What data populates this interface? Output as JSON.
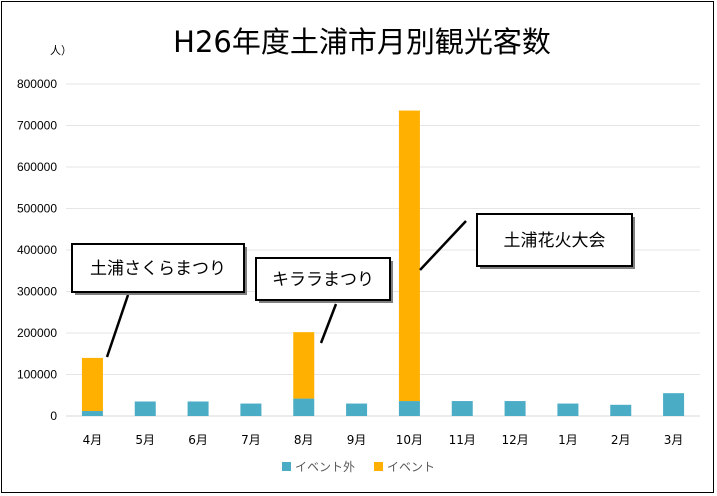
{
  "chart_data": {
    "type": "bar",
    "stacked": true,
    "title": "H26年度土浦市月別観光客数",
    "ylabel": "人）",
    "ylim": [
      0,
      800000
    ],
    "yticks": [
      0,
      100000,
      200000,
      300000,
      400000,
      500000,
      600000,
      700000,
      800000
    ],
    "grid": true,
    "legend_position": "bottom",
    "categories": [
      "4月",
      "5月",
      "6月",
      "7月",
      "8月",
      "9月",
      "10月",
      "11月",
      "12月",
      "1月",
      "2月",
      "3月"
    ],
    "series": [
      {
        "name": "イベント外",
        "color": "#4BACC6",
        "values": [
          12000,
          35000,
          35000,
          30000,
          42000,
          30000,
          36000,
          36000,
          36000,
          30000,
          27000,
          55000
        ]
      },
      {
        "name": "イベント",
        "color": "#FFB000",
        "values": [
          128000,
          0,
          0,
          0,
          160000,
          0,
          700000,
          0,
          0,
          0,
          0,
          0
        ]
      }
    ],
    "annotations": [
      {
        "text": "土浦さくらまつり",
        "category": "4月"
      },
      {
        "text": "キララまつり",
        "category": "8月"
      },
      {
        "text": "土浦花火大会",
        "category": "10月"
      }
    ]
  }
}
